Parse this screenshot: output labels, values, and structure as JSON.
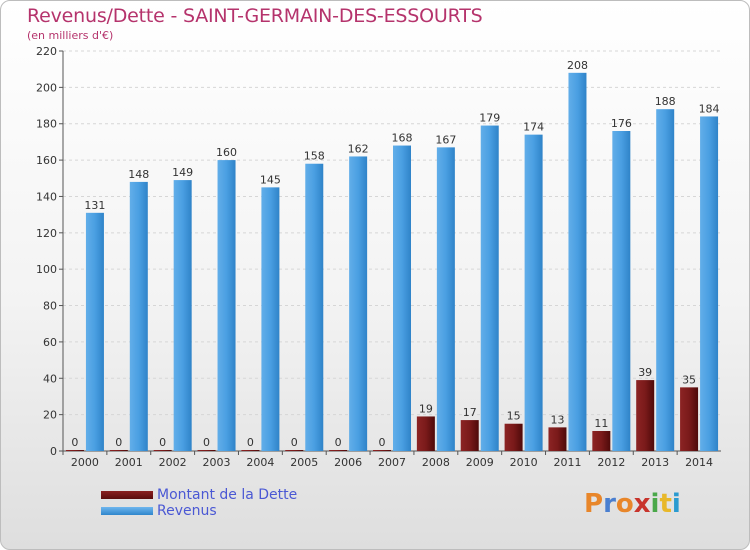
{
  "chart_data": {
    "type": "bar",
    "title": "Revenus/Dette - SAINT-GERMAIN-DES-ESSOURTS",
    "subtitle": "(en milliers d'€)",
    "categories": [
      "2000",
      "2001",
      "2002",
      "2003",
      "2004",
      "2005",
      "2006",
      "2007",
      "2008",
      "2009",
      "2010",
      "2011",
      "2012",
      "2013",
      "2014"
    ],
    "series": [
      {
        "name": "Montant de la Dette",
        "values": [
          0,
          0,
          0,
          0,
          0,
          0,
          0,
          0,
          19,
          17,
          15,
          13,
          11,
          39,
          35
        ],
        "color": "#6b1414"
      },
      {
        "name": "Revenus",
        "values": [
          131,
          148,
          149,
          160,
          145,
          158,
          162,
          168,
          167,
          179,
          174,
          208,
          176,
          188,
          184
        ],
        "color": "#3d95dc"
      }
    ],
    "ylim": [
      0,
      220
    ],
    "yticks": [
      0,
      20,
      40,
      60,
      80,
      100,
      120,
      140,
      160,
      180,
      200,
      220
    ],
    "grid": true,
    "legend": "bottom-left"
  },
  "colors": {
    "title": "#b5336c",
    "legend_text": "#4a58d4",
    "dette": "#6b1414",
    "revenus": "#3d95dc"
  },
  "logo": {
    "letters": [
      "P",
      "r",
      "o",
      "x",
      "i",
      "t",
      "i"
    ],
    "colors": [
      "#e8862a",
      "#4a7fd0",
      "#e8862a",
      "#c8342c",
      "#4aa84a",
      "#e8b82a",
      "#2a9bd0"
    ]
  }
}
